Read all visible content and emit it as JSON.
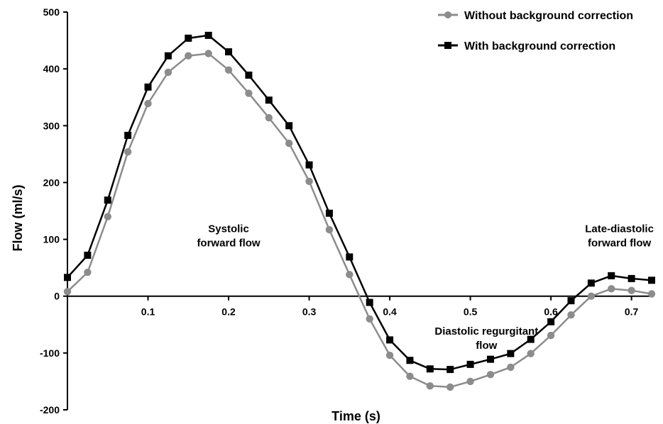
{
  "chart_data": {
    "type": "line",
    "xlabel": "Time (s)",
    "ylabel": "Flow (ml/s)",
    "xlim": [
      0,
      0.725
    ],
    "ylim": [
      -200,
      500
    ],
    "x_ticks": [
      0.1,
      0.2,
      0.3,
      0.4,
      0.5,
      0.6,
      0.7
    ],
    "x_tick_labels": [
      "0.1",
      "0.2",
      "0.3",
      "0.4",
      "0.5",
      "0.6",
      "0.7"
    ],
    "y_ticks": [
      -200,
      -100,
      0,
      100,
      200,
      300,
      400,
      500
    ],
    "y_tick_labels": [
      "-200",
      "-100",
      "0",
      "100",
      "200",
      "300",
      "400",
      "500"
    ],
    "grid": false,
    "legend_position": "top-right",
    "x": [
      0,
      0.025,
      0.05,
      0.075,
      0.1,
      0.125,
      0.15,
      0.175,
      0.2,
      0.225,
      0.25,
      0.275,
      0.3,
      0.325,
      0.35,
      0.375,
      0.4,
      0.425,
      0.45,
      0.475,
      0.5,
      0.525,
      0.55,
      0.575,
      0.6,
      0.625,
      0.65,
      0.675,
      0.7,
      0.725
    ],
    "series": [
      {
        "name": "Without background correction",
        "color": "#8c8c8c",
        "marker": "circle",
        "values": [
          8,
          42,
          140,
          254,
          339,
          394,
          423,
          427,
          398,
          357,
          314,
          269,
          202,
          117,
          38,
          -40,
          -104,
          -141,
          -158,
          -160,
          -150,
          -138,
          -125,
          -101,
          -69,
          -33,
          0,
          13,
          10,
          4
        ]
      },
      {
        "name": "With background correction",
        "color": "#000000",
        "marker": "square",
        "values": [
          33,
          72,
          169,
          283,
          368,
          423,
          454,
          459,
          430,
          389,
          345,
          300,
          231,
          146,
          69,
          -11,
          -77,
          -113,
          -128,
          -129,
          -120,
          -111,
          -101,
          -76,
          -45,
          -8,
          23,
          36,
          31,
          28
        ]
      }
    ],
    "annotations": [
      {
        "lines": [
          "Systolic",
          "forward flow"
        ],
        "x": 0.2,
        "y": 100
      },
      {
        "lines": [
          "Diastolic regurgitant",
          "flow"
        ],
        "x": 0.52,
        "y": -80
      },
      {
        "lines": [
          "Late-diastolic",
          "forward flow"
        ],
        "x": 0.685,
        "y": 100
      }
    ]
  }
}
